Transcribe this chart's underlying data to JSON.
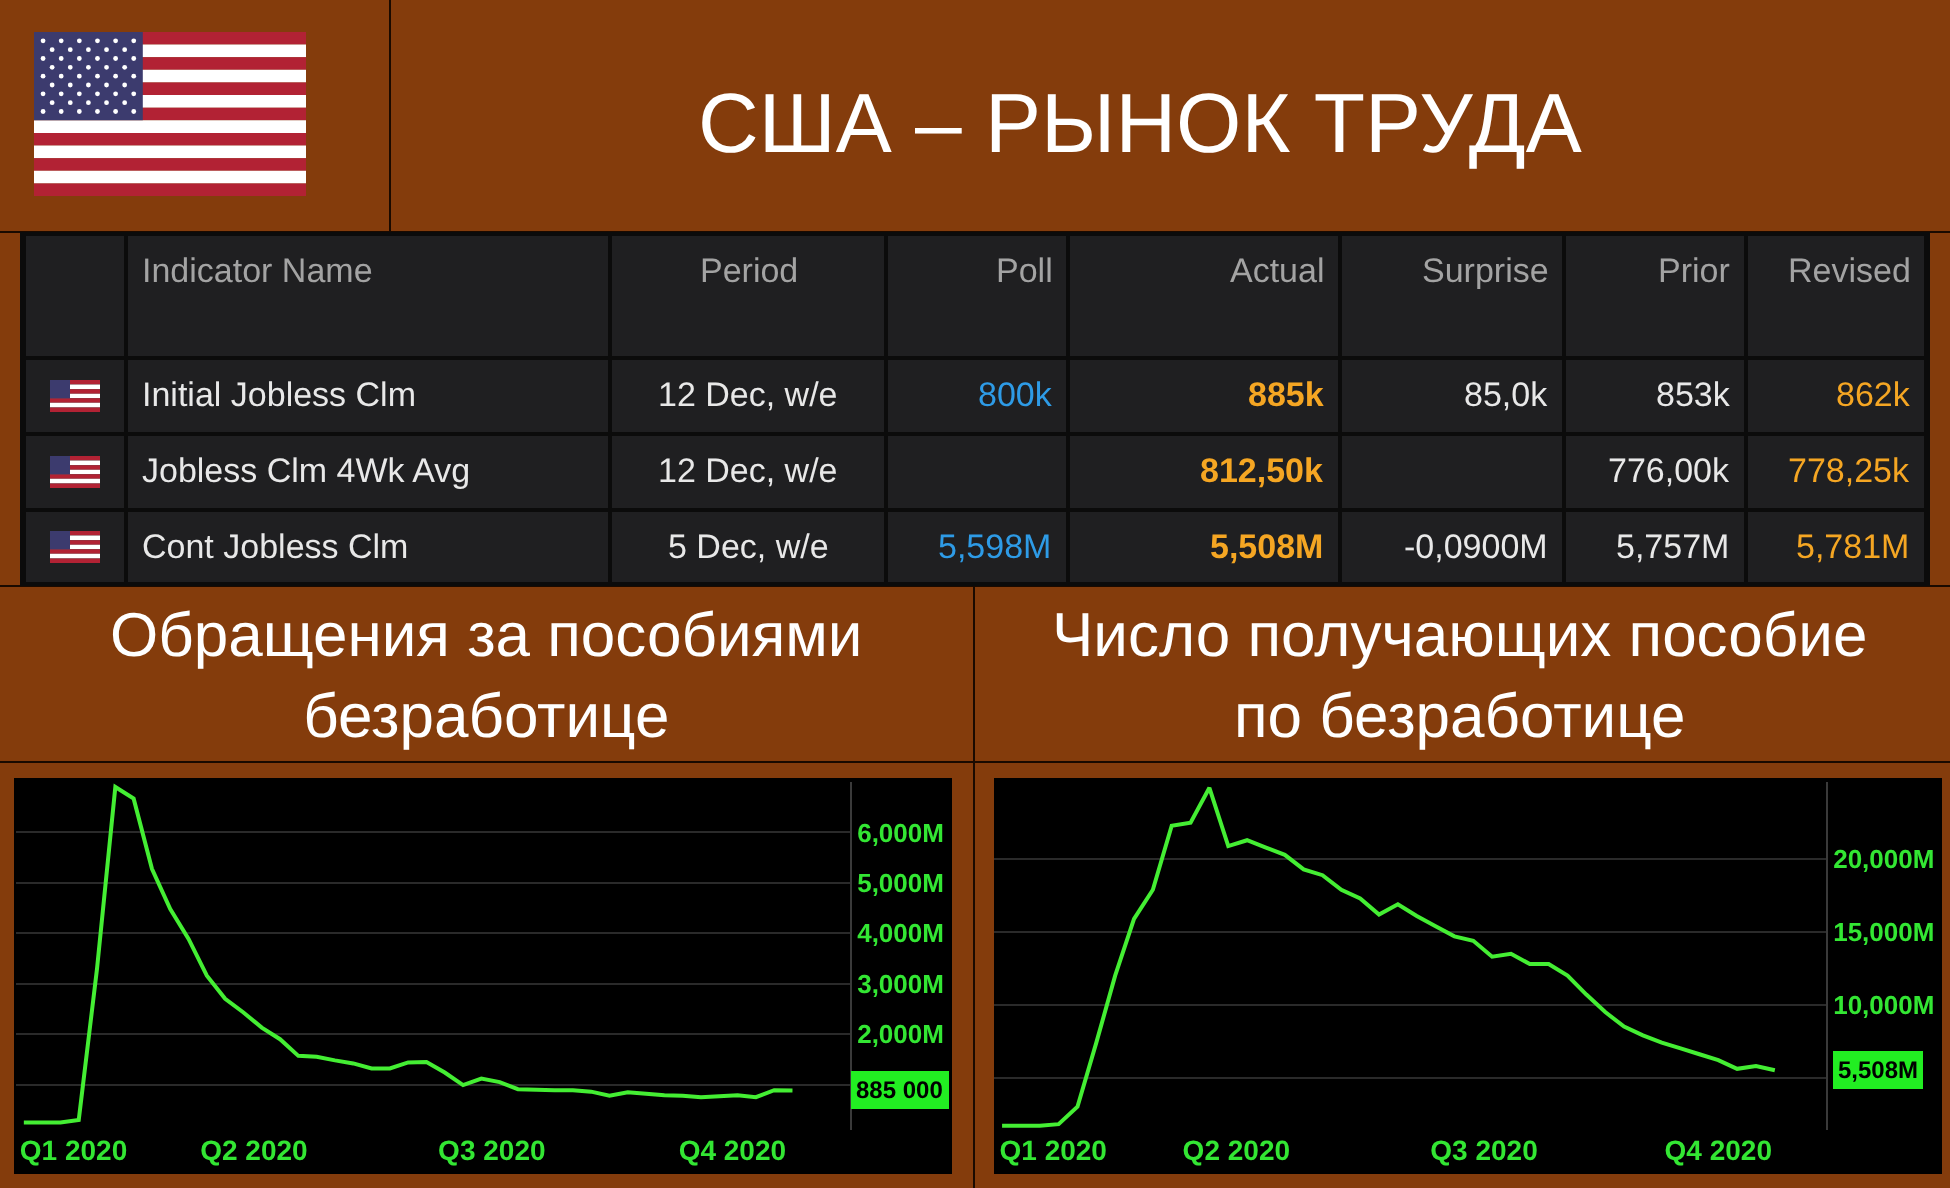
{
  "chart_data": [
    {
      "type": "other",
      "title": "США – РЫНОК ТРУДА",
      "categories": [
        "Indicator Name",
        "Period",
        "Poll",
        "Actual",
        "Surprise",
        "Prior",
        "Revised"
      ],
      "cell_labels": [
        [
          "Initial Jobless Clm",
          "12 Dec, w/e",
          "800k",
          "885k",
          "85,0k",
          "853k",
          "862k"
        ],
        [
          "Jobless Clm 4Wk Avg",
          "12 Dec, w/e",
          null,
          "812,50k",
          null,
          "776,00k",
          "778,25k"
        ],
        [
          "Cont Jobless Clm",
          "5 Dec, w/e",
          "5,598M",
          "5,508M",
          "-0,0900M",
          "5,757M",
          "5,781M"
        ]
      ]
    },
    {
      "type": "line",
      "title": "Обращения за пособиями безработице",
      "color": "#44ee33",
      "x": [
        "2020-02-22",
        "2020-02-29",
        "2020-03-07",
        "2020-03-14",
        "2020-03-21",
        "2020-03-28",
        "2020-04-04",
        "2020-04-11",
        "2020-04-18",
        "2020-04-25",
        "2020-05-02",
        "2020-05-09",
        "2020-05-16",
        "2020-05-23",
        "2020-05-30",
        "2020-06-06",
        "2020-06-13",
        "2020-06-20",
        "2020-06-27",
        "2020-07-04",
        "2020-07-11",
        "2020-07-18",
        "2020-07-25",
        "2020-08-01",
        "2020-08-08",
        "2020-08-15",
        "2020-08-22",
        "2020-08-29",
        "2020-09-05",
        "2020-09-12",
        "2020-09-19",
        "2020-09-26",
        "2020-10-03",
        "2020-10-10",
        "2020-10-17",
        "2020-10-24",
        "2020-10-31",
        "2020-11-07",
        "2020-11-14",
        "2020-11-21",
        "2020-11-28",
        "2020-12-05",
        "2020-12-12"
      ],
      "values": [
        250,
        250,
        250,
        300,
        3300,
        6900,
        6670,
        5280,
        4480,
        3890,
        3160,
        2700,
        2430,
        2130,
        1900,
        1570,
        1550,
        1480,
        1420,
        1320,
        1320,
        1440,
        1450,
        1240,
        990,
        1120,
        1050,
        910,
        900,
        890,
        890,
        860,
        780,
        850,
        820,
        790,
        780,
        750,
        770,
        790,
        750,
        890,
        885
      ],
      "annotations": [
        {
          "text": "885 000",
          "x": "2020-12-12",
          "y": 885
        }
      ],
      "xlim": [
        "2020-02-19",
        "2021-01-03"
      ],
      "xticks": [
        {
          "value": "2020-03-12",
          "label": "Q1 2020"
        },
        {
          "value": "2020-05-20",
          "label": "Q2 2020"
        },
        {
          "value": "2020-08-19",
          "label": "Q3 2020"
        },
        {
          "value": "2020-11-19",
          "label": "Q4 2020"
        }
      ],
      "ylim": [
        100,
        7000
      ],
      "yticks": [
        {
          "value": 1000,
          "label": null
        },
        {
          "value": 2000,
          "label": "2,000M"
        },
        {
          "value": 3000,
          "label": "3,000M"
        },
        {
          "value": 4000,
          "label": "4,000M"
        },
        {
          "value": 5000,
          "label": "5,000M"
        },
        {
          "value": 6000,
          "label": "6,000M"
        }
      ],
      "grid": "y"
    },
    {
      "type": "line",
      "title": "Число получающих пособие по безработице",
      "color": "#44ee33",
      "x": [
        "2020-02-22",
        "2020-02-29",
        "2020-03-07",
        "2020-03-14",
        "2020-03-21",
        "2020-03-28",
        "2020-04-04",
        "2020-04-11",
        "2020-04-18",
        "2020-04-25",
        "2020-05-02",
        "2020-05-09",
        "2020-05-16",
        "2020-05-23",
        "2020-05-30",
        "2020-06-06",
        "2020-06-13",
        "2020-06-20",
        "2020-06-27",
        "2020-07-04",
        "2020-07-11",
        "2020-07-18",
        "2020-07-25",
        "2020-08-01",
        "2020-08-08",
        "2020-08-15",
        "2020-08-22",
        "2020-08-29",
        "2020-09-05",
        "2020-09-12",
        "2020-09-19",
        "2020-09-26",
        "2020-10-03",
        "2020-10-10",
        "2020-10-17",
        "2020-10-24",
        "2020-10-31",
        "2020-11-07",
        "2020-11-14",
        "2020-11-21",
        "2020-11-28",
        "2020-12-05"
      ],
      "values": [
        1700,
        1700,
        1700,
        1800,
        3000,
        7400,
        12000,
        15900,
        17900,
        22300,
        22500,
        24900,
        20900,
        21300,
        20800,
        20300,
        19300,
        18900,
        17900,
        17300,
        16200,
        16900,
        16100,
        15400,
        14700,
        14400,
        13300,
        13500,
        12800,
        12800,
        12000,
        10700,
        9500,
        8500,
        7900,
        7400,
        7000,
        6600,
        6200,
        5600,
        5800,
        5508
      ],
      "annotations": [
        {
          "text": "5,508M",
          "x": "2020-12-05",
          "y": 5508
        }
      ],
      "xlim": [
        "2020-02-19",
        "2020-12-24"
      ],
      "xticks": [
        {
          "value": "2020-03-12",
          "label": "Q1 2020"
        },
        {
          "value": "2020-05-19",
          "label": "Q2 2020"
        },
        {
          "value": "2020-08-19",
          "label": "Q3 2020"
        },
        {
          "value": "2020-11-14",
          "label": "Q4 2020"
        }
      ],
      "ylim": [
        1400,
        25300
      ],
      "yticks": [
        {
          "value": 5000,
          "label": null
        },
        {
          "value": 10000,
          "label": "10,000M"
        },
        {
          "value": 15000,
          "label": "15,000M"
        },
        {
          "value": 20000,
          "label": "20,000M"
        }
      ],
      "grid": "y"
    }
  ]
}
